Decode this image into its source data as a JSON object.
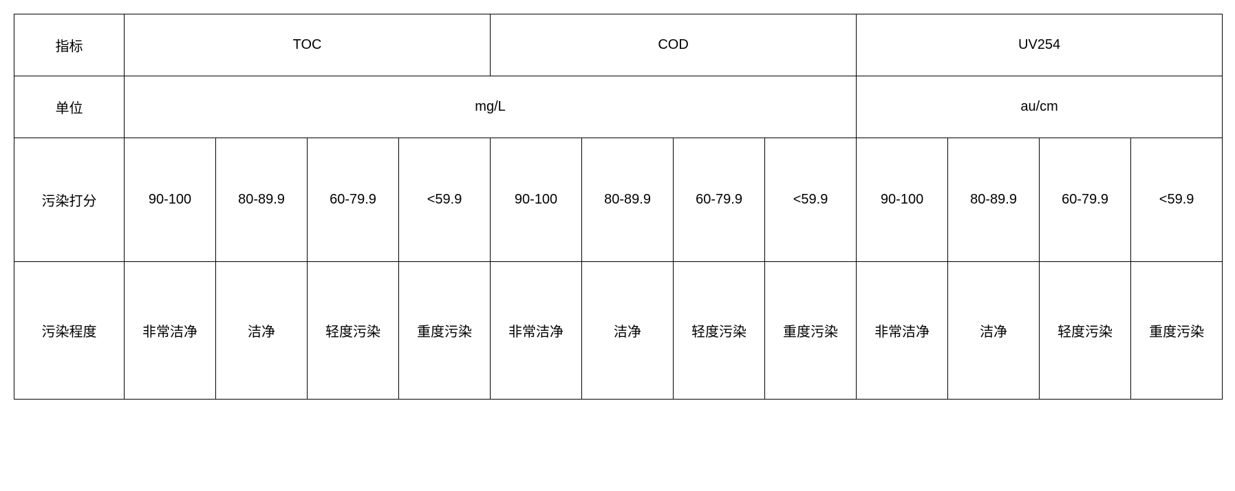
{
  "table": {
    "label_column_width": 160,
    "data_column_width": 133,
    "border_color": "#000000",
    "background_color": "#ffffff",
    "text_color": "#000000",
    "font_size": 20,
    "row_labels": {
      "indicator": "指标",
      "unit": "单位",
      "score": "污染打分",
      "level": "污染程度"
    },
    "indicators": [
      "TOC",
      "COD",
      "UV254"
    ],
    "units": {
      "mgL": "mg/L",
      "aucm": "au/cm"
    },
    "scores": {
      "toc": [
        "90-100",
        "80-89.9",
        "60-79.9",
        "<59.9"
      ],
      "cod": [
        "90-100",
        "80-89.9",
        "60-79.9",
        "<59.9"
      ],
      "uv254": [
        "90-100",
        "80-89.9",
        "60-79.9",
        "<59.9"
      ]
    },
    "levels": {
      "toc": [
        "非常洁净",
        "洁净",
        "轻度污染",
        "重度污染"
      ],
      "cod": [
        "非常洁净",
        "洁净",
        "轻度污染",
        "重度污染"
      ],
      "uv254": [
        "非常洁净",
        "洁净",
        "轻度污染",
        "重度污染"
      ]
    }
  }
}
